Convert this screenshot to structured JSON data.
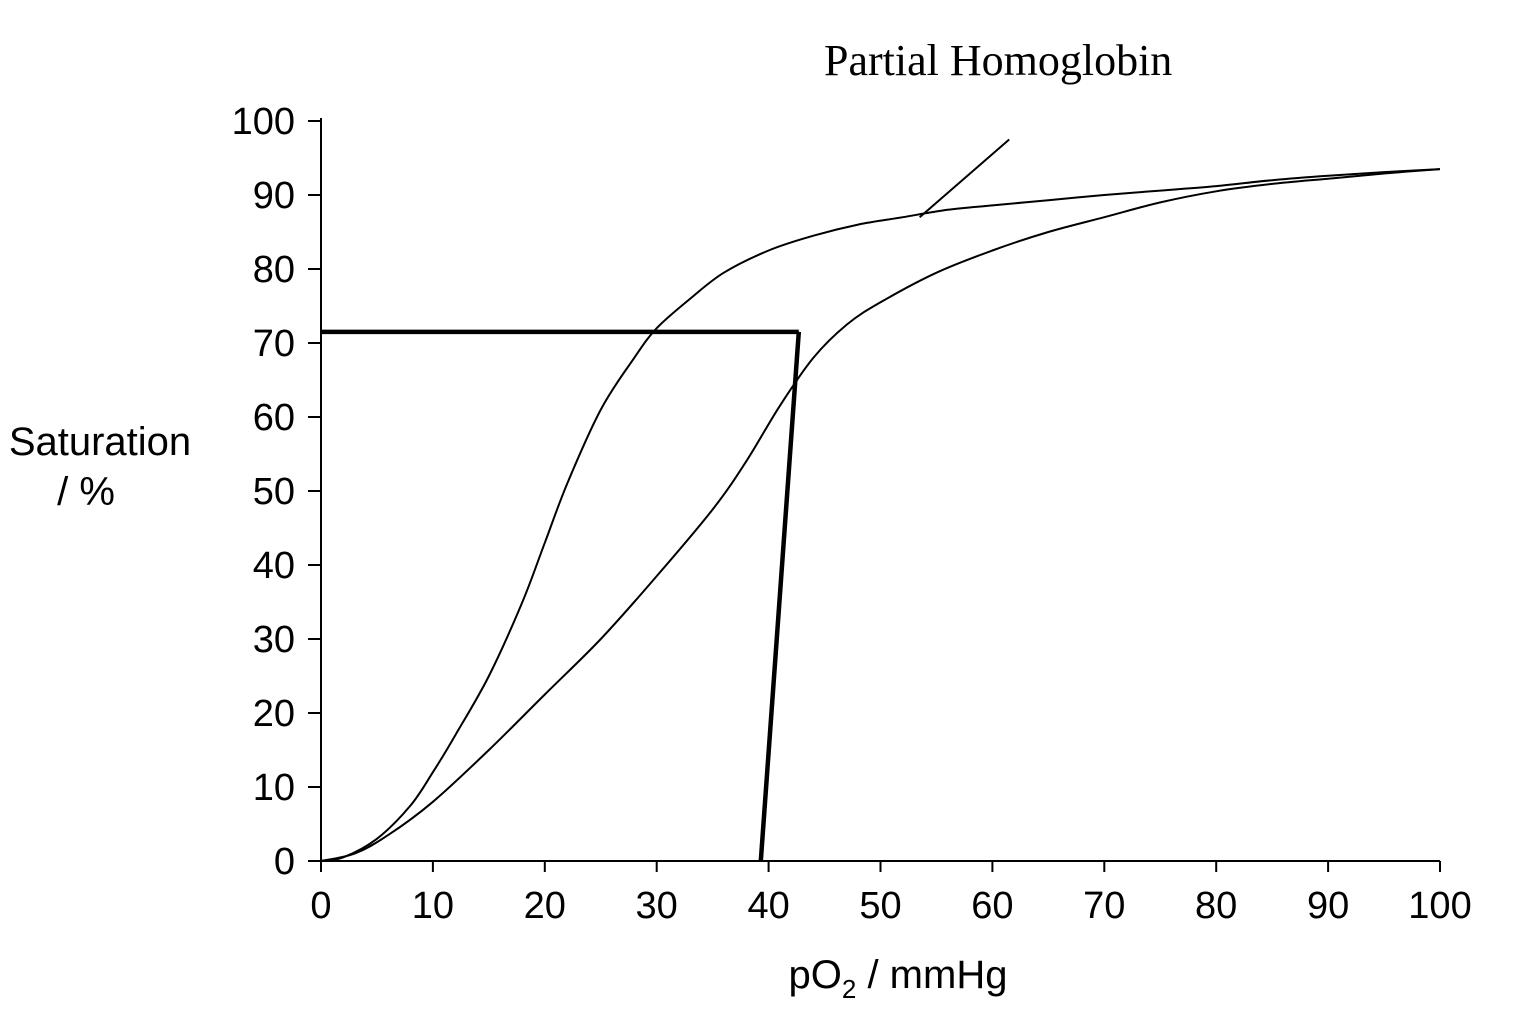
{
  "chart_data": {
    "type": "line",
    "annotation": "Partial Homoglobin",
    "ylabel_line1": "Saturation",
    "ylabel_line2": "/ %",
    "xlabel_main": "pO",
    "xlabel_sub": "2",
    "xlabel_rest": " / mmHg",
    "xlim": [
      0,
      100
    ],
    "ylim": [
      0,
      100
    ],
    "x_ticks": [
      0,
      10,
      20,
      30,
      40,
      50,
      60,
      70,
      80,
      90,
      100
    ],
    "y_ticks": [
      0,
      10,
      20,
      30,
      40,
      50,
      60,
      70,
      80,
      90,
      100
    ],
    "grid": false,
    "series": [
      {
        "points": [
          [
            0,
            0
          ],
          [
            2,
            0.5
          ],
          [
            5,
            3
          ],
          [
            8,
            7.5
          ],
          [
            10,
            12
          ],
          [
            12,
            17
          ],
          [
            15,
            25
          ],
          [
            18,
            35
          ],
          [
            20,
            43
          ],
          [
            22,
            51
          ],
          [
            25,
            61
          ],
          [
            28,
            68
          ],
          [
            30,
            72
          ],
          [
            33,
            76
          ],
          [
            36,
            79.5
          ],
          [
            40,
            82.5
          ],
          [
            44,
            84.5
          ],
          [
            48,
            86
          ],
          [
            52,
            87
          ],
          [
            56,
            88
          ],
          [
            60,
            88.6
          ],
          [
            65,
            89.3
          ],
          [
            70,
            90
          ],
          [
            75,
            90.6
          ],
          [
            80,
            91.2
          ],
          [
            85,
            92
          ],
          [
            90,
            92.6
          ],
          [
            95,
            93.1
          ],
          [
            100,
            93.5
          ]
        ]
      },
      {
        "points": [
          [
            0,
            0
          ],
          [
            3,
            1
          ],
          [
            6,
            3.5
          ],
          [
            10,
            8
          ],
          [
            15,
            15
          ],
          [
            20,
            22.5
          ],
          [
            25,
            30
          ],
          [
            30,
            38.5
          ],
          [
            35,
            47.5
          ],
          [
            38,
            54
          ],
          [
            41,
            61.5
          ],
          [
            44,
            68
          ],
          [
            47,
            72.5
          ],
          [
            50,
            75.5
          ],
          [
            55,
            79.5
          ],
          [
            60,
            82.5
          ],
          [
            65,
            85
          ],
          [
            70,
            87
          ],
          [
            75,
            89
          ],
          [
            80,
            90.5
          ],
          [
            85,
            91.5
          ],
          [
            90,
            92.2
          ],
          [
            95,
            92.9
          ],
          [
            100,
            93.5
          ]
        ]
      }
    ],
    "guide_lines": [
      {
        "points": [
          [
            0,
            71.5
          ],
          [
            42.7,
            71.5
          ]
        ]
      },
      {
        "points": [
          [
            42.7,
            71.5
          ],
          [
            39.3,
            0
          ]
        ]
      }
    ],
    "annotation_pointer": [
      [
        61.5,
        97.5
      ],
      [
        53.5,
        87
      ]
    ]
  }
}
